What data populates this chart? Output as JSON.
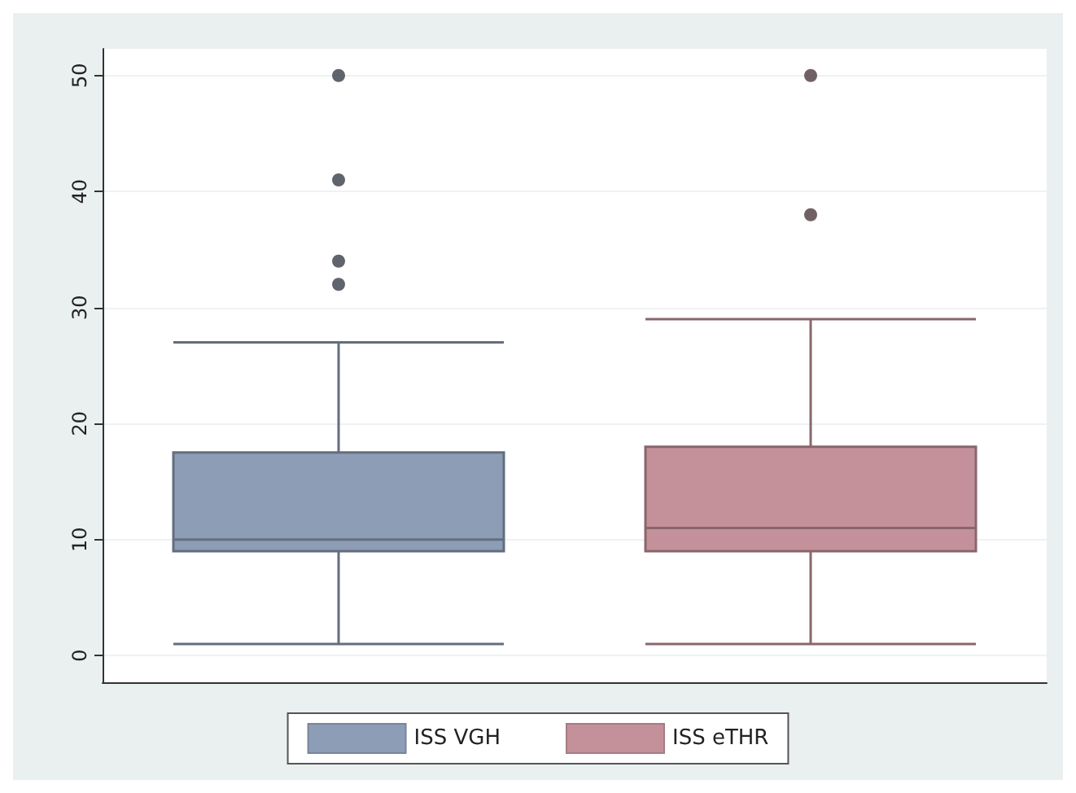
{
  "chart_data": {
    "type": "box",
    "categories": [
      null,
      null
    ],
    "ylim": [
      -2.3,
      52.3
    ],
    "yticks": [
      0,
      10,
      20,
      30,
      40,
      50
    ],
    "grid": "y",
    "legend": "bottom",
    "marker": "circle",
    "series": [
      {
        "name": "ISS VGH",
        "color": "#8d9db5",
        "boxes": [
          {
            "low": 1,
            "q1": 9,
            "median": 10,
            "q3": 17.5,
            "high": 27,
            "outliers": [
              32,
              34,
              41,
              50
            ]
          },
          null
        ]
      },
      {
        "name": "ISS eTHR",
        "color": "#c4919a",
        "boxes": [
          null,
          {
            "low": 1,
            "q1": 9,
            "median": 11,
            "q3": 18,
            "high": 29,
            "outliers": [
              38,
              50
            ]
          }
        ]
      }
    ]
  }
}
